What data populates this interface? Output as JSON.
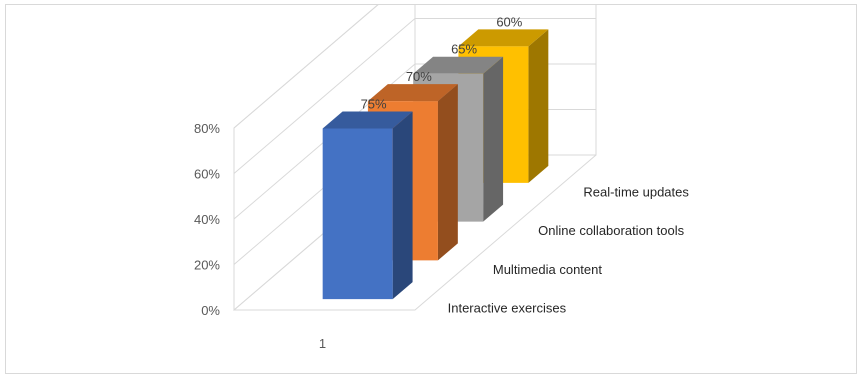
{
  "chart_data": {
    "type": "bar",
    "title": "",
    "categories": [
      "1"
    ],
    "series": [
      {
        "name": "Interactive exercises",
        "values": [
          0.75
        ],
        "label": "75%",
        "color": "#4472C4"
      },
      {
        "name": "Multimedia content",
        "values": [
          0.7
        ],
        "label": "70%",
        "color": "#ED7D31"
      },
      {
        "name": "Online collaboration tools",
        "values": [
          0.65
        ],
        "label": "65%",
        "color": "#A5A5A5"
      },
      {
        "name": "Real-time updates",
        "values": [
          0.6
        ],
        "label": "60%",
        "color": "#FFC000"
      }
    ],
    "y_ticks": [
      "0%",
      "20%",
      "40%",
      "60%",
      "80%"
    ],
    "ylim": [
      0,
      0.8
    ],
    "x_tick": "1",
    "grid": true,
    "style": "3d-column",
    "legend": "depth-axis labels (right side)"
  }
}
